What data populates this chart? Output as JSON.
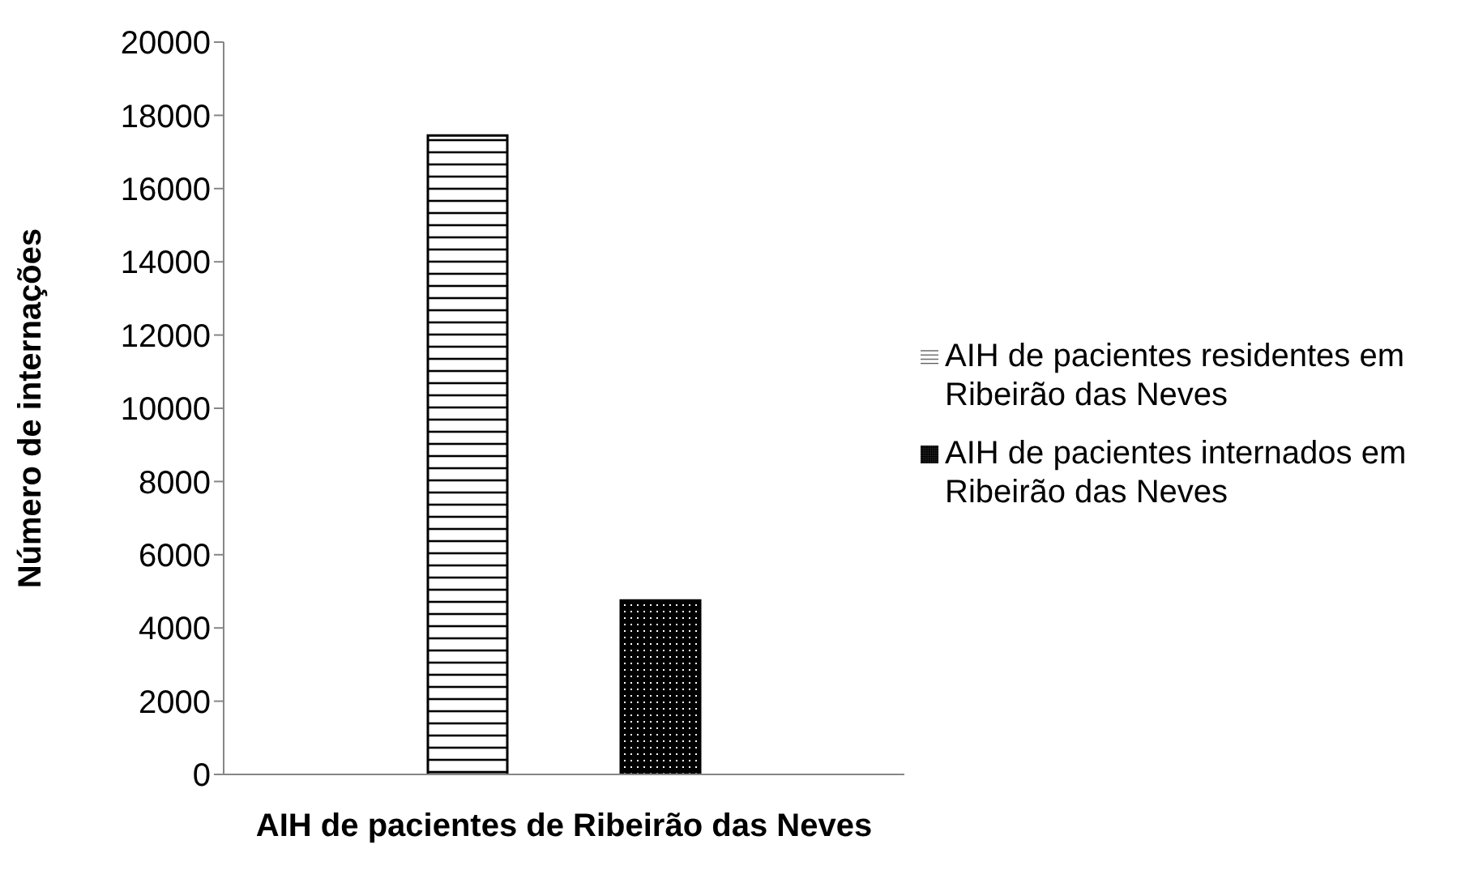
{
  "chart_data": {
    "type": "bar",
    "xlabel": "AIH de pacientes de Ribeirão das Neves",
    "ylabel": "Número de internações",
    "categories": [
      null
    ],
    "series": [
      {
        "name": "AIH de pacientes residentes em Ribeirão das Neves",
        "color": "#000000",
        "values": [
          17450
        ]
      },
      {
        "name": "AIH de pacientes internados em Ribeirão das Neves",
        "color": "#000000",
        "values": [
          4750
        ]
      }
    ],
    "ylim": [
      0,
      20000
    ],
    "yticks": [
      0,
      2000,
      4000,
      6000,
      8000,
      10000,
      12000,
      14000,
      16000,
      18000,
      20000
    ],
    "grid": false,
    "legend": "right"
  }
}
